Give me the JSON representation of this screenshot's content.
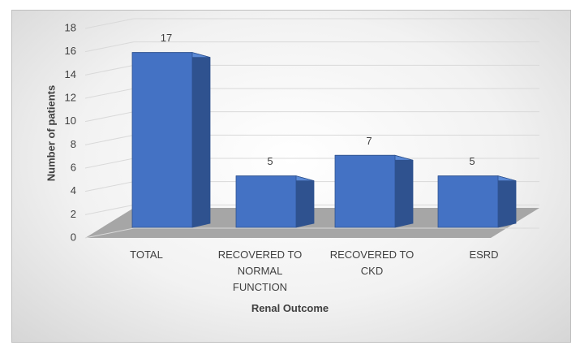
{
  "chart_data": {
    "type": "bar3d",
    "x_label": "Renal Outcome",
    "y_label": "Number of patients",
    "categories": [
      "TOTAL",
      "RECOVERED TO NORMAL FUNCTION",
      "RECOVERED TO CKD",
      "ESRD"
    ],
    "values": [
      17,
      5,
      7,
      5
    ],
    "color": "#4472c4",
    "ylim": [
      0,
      18
    ],
    "yticks": [
      0,
      2,
      4,
      6,
      8,
      10,
      12,
      14,
      16,
      18
    ],
    "grid": true
  }
}
